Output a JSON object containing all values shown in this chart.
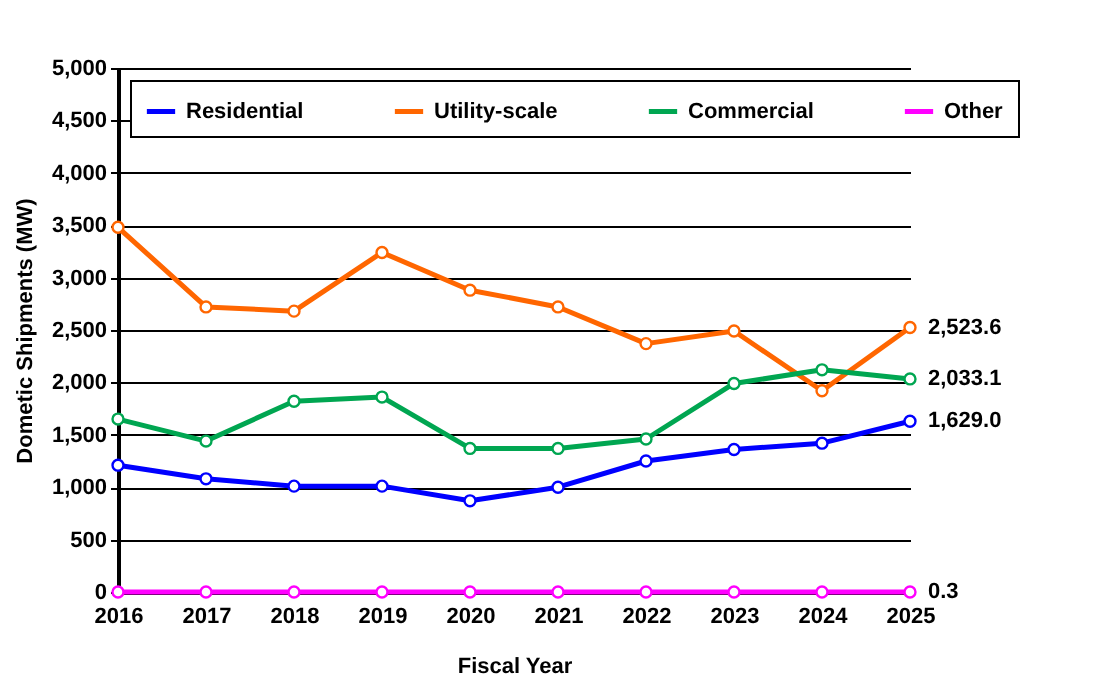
{
  "chart_data": {
    "type": "line",
    "xlabel": "Fiscal Year",
    "ylabel": "Dometic Shipments (MW)",
    "categories": [
      "2016",
      "2017",
      "2018",
      "2019",
      "2020",
      "2021",
      "2022",
      "2023",
      "2024",
      "2025"
    ],
    "series": [
      {
        "name": "Residential",
        "color": "#0000ff",
        "values": [
          1210,
          1080,
          1010,
          1010,
          870,
          1000,
          1250,
          1360,
          1420,
          1629.0
        ],
        "value_labels": [
          null,
          null,
          null,
          null,
          null,
          null,
          null,
          null,
          null,
          "1,629.0"
        ]
      },
      {
        "name": "Utility-scale",
        "color": "#ff6600",
        "values": [
          3480,
          2720,
          2680,
          3240,
          2880,
          2720,
          2370,
          2490,
          1920,
          2523.6
        ],
        "value_labels": [
          null,
          null,
          null,
          null,
          null,
          null,
          null,
          null,
          null,
          "2,523.6"
        ]
      },
      {
        "name": "Commercial",
        "color": "#00a651",
        "values": [
          1650,
          1440,
          1820,
          1860,
          1370,
          1370,
          1460,
          1990,
          2120,
          2033.1
        ],
        "value_labels": [
          null,
          null,
          null,
          null,
          null,
          null,
          null,
          null,
          null,
          "2,033.1"
        ]
      },
      {
        "name": "Other",
        "color": "#ff00ff",
        "values": [
          0,
          0,
          0,
          0,
          0,
          0,
          0,
          0,
          0,
          0.3
        ],
        "value_labels": [
          null,
          null,
          null,
          null,
          null,
          null,
          null,
          null,
          null,
          "0.3"
        ]
      }
    ],
    "ylim": [
      0,
      5000
    ],
    "yticks": [
      0,
      500,
      {
        "value": 1000,
        "label": "1,000"
      },
      {
        "value": 1500,
        "label": "1,500"
      },
      {
        "value": 2000,
        "label": "2,000"
      },
      {
        "value": 2500,
        "label": "2,500"
      },
      {
        "value": 3000,
        "label": "3,000"
      },
      {
        "value": 3500,
        "label": "3,500"
      },
      {
        "value": 4000,
        "label": "4,000"
      },
      {
        "value": 4500,
        "label": "4,500"
      },
      {
        "value": 5000,
        "label": "5,000"
      }
    ],
    "grid": "y",
    "legend": "top",
    "marker": "circle",
    "line_style": "solid"
  }
}
